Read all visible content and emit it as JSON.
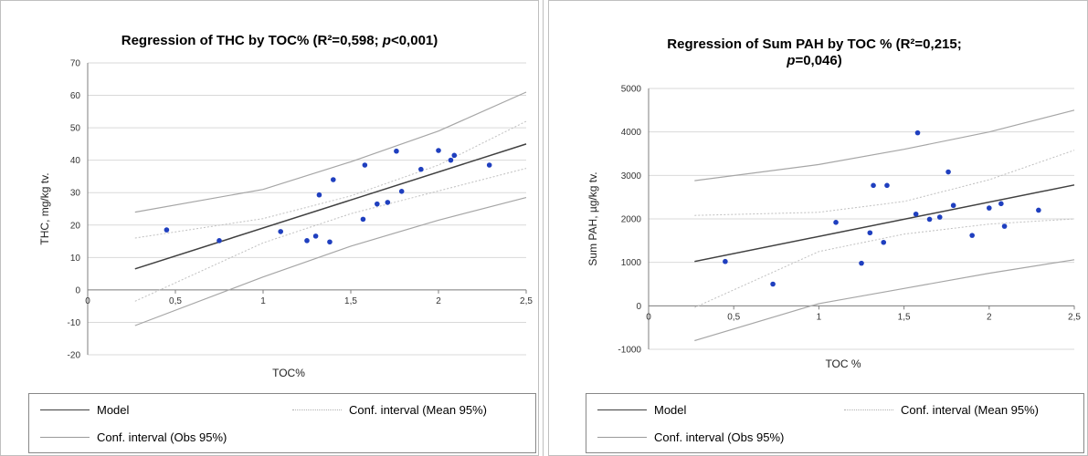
{
  "chart_data": [
    {
      "type": "scatter",
      "title_main": "Regression of THC by TOC% (R²=0,598; ",
      "title_p": "p",
      "title_tail": "<0,001)",
      "xlabel": "TOC%",
      "ylabel": "THC, mg/kg tv.",
      "xlim": [
        0,
        2.5
      ],
      "ylim": [
        -20,
        70
      ],
      "x_ticks": [
        "0",
        "0,5",
        "1",
        "1,5",
        "2",
        "2,5"
      ],
      "y_ticks": [
        "-20",
        "-10",
        "0",
        "10",
        "20",
        "30",
        "40",
        "50",
        "60",
        "70"
      ],
      "grid": true,
      "point_color": "#1f3fbf",
      "series": [
        {
          "name": "Observations",
          "x": [
            0.45,
            0.75,
            1.1,
            1.25,
            1.3,
            1.32,
            1.38,
            1.4,
            1.57,
            1.58,
            1.65,
            1.71,
            1.76,
            1.79,
            1.9,
            2.0,
            2.07,
            2.09,
            2.29
          ],
          "y": [
            18.5,
            15.2,
            18.0,
            15.2,
            16.6,
            29.3,
            14.8,
            34.0,
            21.8,
            38.5,
            26.5,
            27.0,
            42.8,
            30.4,
            37.2,
            43.0,
            40.0,
            41.5,
            38.5
          ]
        },
        {
          "name": "Model",
          "x": [
            0.27,
            2.5
          ],
          "y": [
            6.5,
            45.0
          ]
        },
        {
          "name": "Conf. interval (Mean 95%)",
          "upper": {
            "x": [
              0.27,
              1.0,
              1.5,
              2.0,
              2.5
            ],
            "y": [
              16.0,
              22.0,
              29.0,
              38.5,
              52.0
            ]
          },
          "lower": {
            "x": [
              0.27,
              1.0,
              1.5,
              2.0,
              2.5
            ],
            "y": [
              -3.5,
              14.5,
              23.5,
              30.5,
              37.5
            ]
          }
        },
        {
          "name": "Conf. interval (Obs 95%)",
          "upper": {
            "x": [
              0.27,
              1.0,
              1.5,
              2.0,
              2.5
            ],
            "y": [
              24.0,
              31.0,
              39.5,
              49.0,
              61.0
            ]
          },
          "lower": {
            "x": [
              0.27,
              1.0,
              1.5,
              2.0,
              2.5
            ],
            "y": [
              -11.0,
              4.0,
              13.5,
              21.5,
              28.5
            ]
          }
        }
      ]
    },
    {
      "type": "scatter",
      "title_main": "Regression of Sum PAH by TOC % (R²=0,215;",
      "title_p": "p",
      "title_tail": "=0,046)",
      "xlabel": "TOC  %",
      "ylabel": "Sum PAH, µg/kg tv.",
      "xlim": [
        0,
        2.5
      ],
      "ylim": [
        -1000,
        5000
      ],
      "x_ticks": [
        "0",
        "0,5",
        "1",
        "1,5",
        "2",
        "2,5"
      ],
      "y_ticks": [
        "-1000",
        "0",
        "1000",
        "2000",
        "3000",
        "4000",
        "5000"
      ],
      "grid": true,
      "point_color": "#1f3fbf",
      "series": [
        {
          "name": "Observations",
          "x": [
            0.45,
            0.73,
            1.1,
            1.25,
            1.3,
            1.32,
            1.38,
            1.4,
            1.57,
            1.58,
            1.65,
            1.71,
            1.76,
            1.79,
            1.9,
            2.0,
            2.07,
            2.09,
            2.29
          ],
          "y": [
            1020,
            500,
            1920,
            980,
            1680,
            2770,
            1460,
            2770,
            2110,
            3980,
            1990,
            2040,
            3080,
            2310,
            1620,
            2250,
            2350,
            1830,
            2200
          ]
        },
        {
          "name": "Model",
          "x": [
            0.27,
            2.5
          ],
          "y": [
            1020,
            2780
          ]
        },
        {
          "name": "Conf. interval (Mean 95%)",
          "upper": {
            "x": [
              0.27,
              1.0,
              1.5,
              2.0,
              2.5
            ],
            "y": [
              2080,
              2150,
              2400,
              2900,
              3580
            ]
          },
          "lower": {
            "x": [
              0.27,
              1.0,
              1.5,
              2.0,
              2.5
            ],
            "y": [
              -40,
              1250,
              1650,
              1880,
              2000
            ]
          }
        },
        {
          "name": "Conf. interval (Obs 95%)",
          "upper": {
            "x": [
              0.27,
              1.0,
              1.5,
              2.0,
              2.5
            ],
            "y": [
              2880,
              3250,
              3600,
              4000,
              4500
            ]
          },
          "lower": {
            "x": [
              0.27,
              1.0,
              1.5,
              2.0,
              2.5
            ],
            "y": [
              -800,
              50,
              400,
              750,
              1060
            ]
          }
        }
      ]
    }
  ],
  "legends": [
    {
      "model": "Model",
      "mean": "Conf. interval (Mean 95%)",
      "obs": "Conf. interval (Obs 95%)"
    },
    {
      "model": "Model",
      "mean": "Conf. interval (Mean 95%)",
      "obs": "Conf. interval (Obs 95%)"
    }
  ]
}
